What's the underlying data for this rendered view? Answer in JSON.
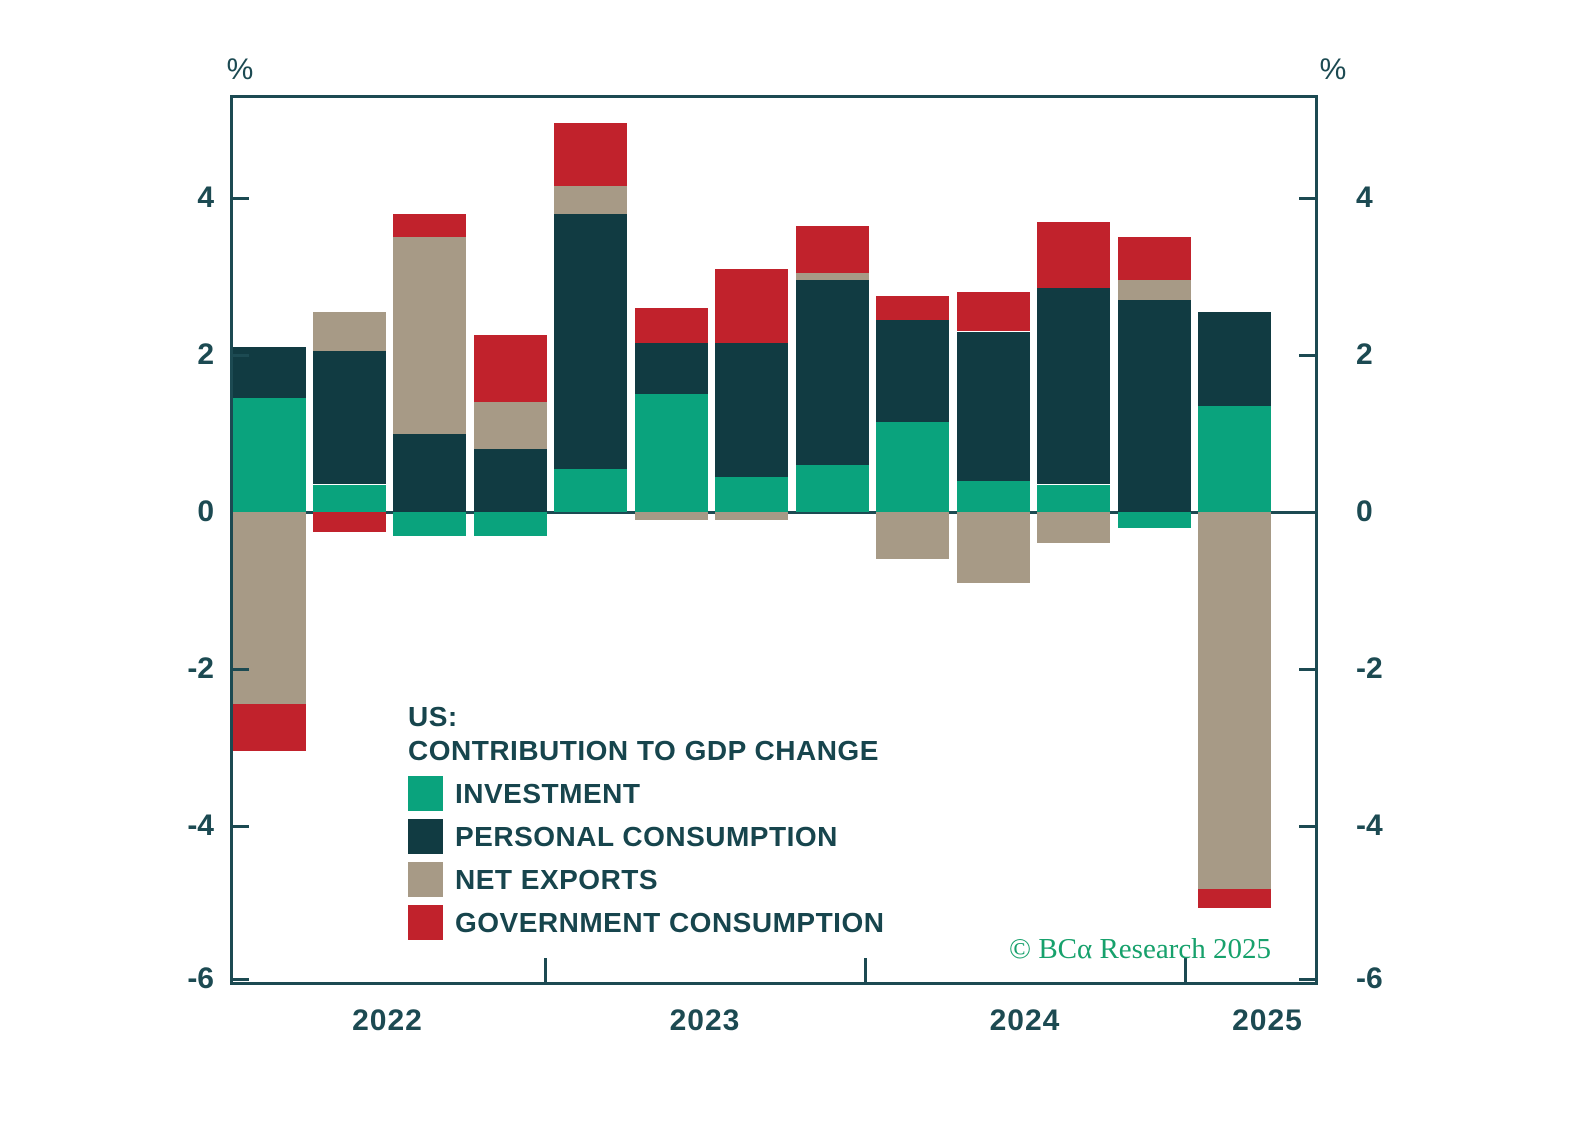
{
  "axes": {
    "percent": "%"
  },
  "legend": {
    "title1": "US:",
    "title2": "CONTRIBUTION TO GDP CHANGE"
  },
  "footer": {
    "copyright": "© BCα Research 2025"
  },
  "colors": {
    "axis": "#1c4a52",
    "label_text": "#1c4a52",
    "legend_text": "#17454d",
    "copyright_green": "#17a16c",
    "background": "#ffffff"
  },
  "chart_data": {
    "type": "bar",
    "subtype": "stacked-bar-quarterly",
    "title": "US: CONTRIBUTION TO GDP CHANGE",
    "unit": "%",
    "categories": [
      "2022Q1",
      "2022Q2",
      "2022Q3",
      "2022Q4",
      "2023Q1",
      "2023Q2",
      "2023Q3",
      "2023Q4",
      "2024Q1",
      "2024Q2",
      "2024Q3",
      "2024Q4",
      "2025Q1"
    ],
    "series": [
      {
        "name": "INVESTMENT",
        "key": "investment",
        "color": "#0aa37d",
        "values": [
          1.45,
          0.35,
          -0.3,
          -0.3,
          0.55,
          1.5,
          0.45,
          0.6,
          1.15,
          0.4,
          0.35,
          -0.2,
          1.35
        ]
      },
      {
        "name": "PERSONAL CONSUMPTION",
        "key": "personal-consumption",
        "color": "#113b42",
        "values": [
          0.65,
          1.7,
          1.0,
          0.8,
          3.25,
          0.65,
          1.7,
          2.35,
          1.3,
          1.9,
          2.5,
          2.7,
          1.2
        ]
      },
      {
        "name": "NET EXPORTS",
        "key": "net-exports",
        "color": "#a79a86",
        "values": [
          -2.45,
          0.5,
          2.5,
          0.6,
          0.35,
          -0.1,
          -0.1,
          0.1,
          -0.6,
          -0.9,
          -0.4,
          0.25,
          -4.8
        ]
      },
      {
        "name": "GOVERNMENT CONSUMPTION",
        "key": "government-consumption",
        "color": "#c1222c",
        "values": [
          -0.6,
          -0.25,
          0.3,
          0.85,
          0.8,
          0.45,
          0.95,
          0.6,
          0.3,
          0.5,
          0.85,
          0.55,
          -0.25
        ]
      }
    ],
    "ylim": [
      -6,
      5.3
    ],
    "yticks": [
      4,
      2,
      0,
      -2,
      -4,
      -6
    ],
    "xticks_years": [
      "2022",
      "2023",
      "2024",
      "2025"
    ],
    "grid": "zero-line-only",
    "legend_position": "inside-lower-left",
    "axis_labels_both_sides": true
  }
}
